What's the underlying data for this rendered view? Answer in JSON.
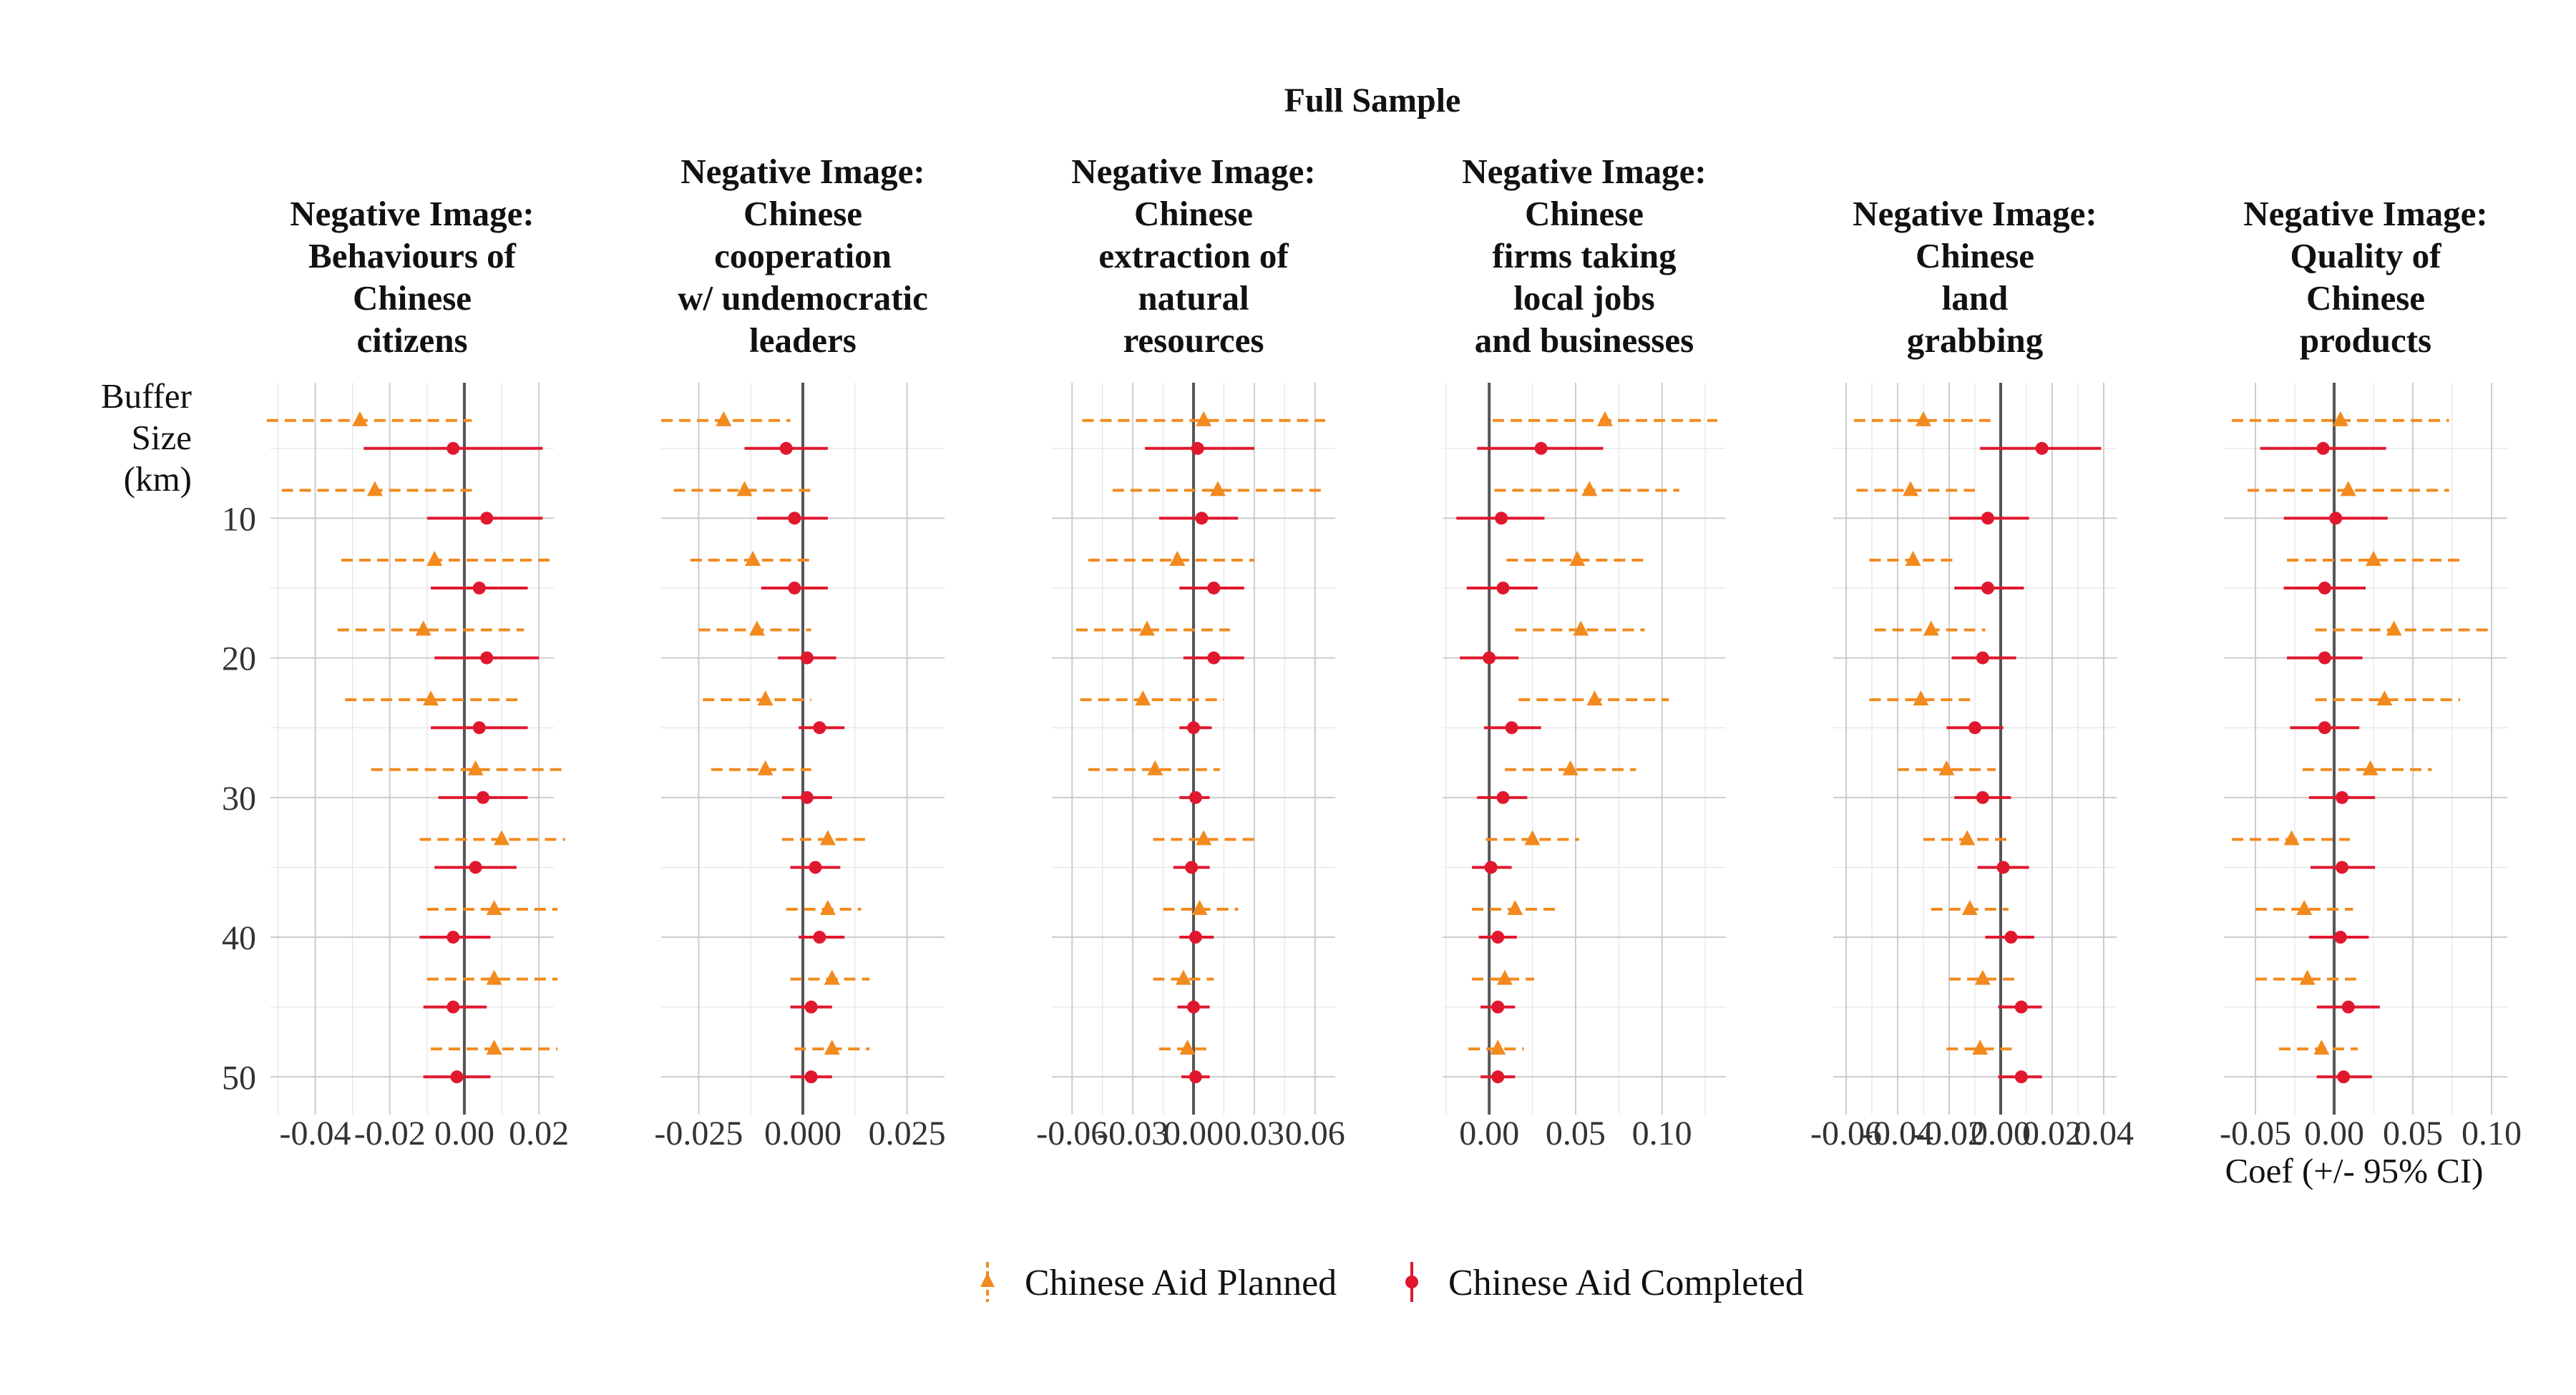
{
  "chart_data": {
    "type": "scatter",
    "title": "Full Sample",
    "y_axis_label": [
      "Buffer",
      "Size",
      "(km)"
    ],
    "x_axis_label": "Coef (+/- 95% CI)",
    "y_ticks": [
      10,
      20,
      30,
      40,
      50
    ],
    "buffers": [
      3,
      5,
      8,
      10,
      13,
      15,
      18,
      20,
      23,
      25,
      28,
      30,
      33,
      35,
      38,
      40,
      43,
      45,
      48,
      50
    ],
    "legend": {
      "position": "bottom",
      "items": [
        {
          "label": "Chinese Aid Planned",
          "color": "#F28A1E",
          "marker": "triangle",
          "line": "dashed"
        },
        {
          "label": "Chinese Aid Completed",
          "color": "#E0182D",
          "marker": "circle",
          "line": "solid"
        }
      ]
    },
    "grid": true,
    "panels": [
      {
        "title_lines": [
          "Negative Image:",
          "Behaviours of",
          "Chinese",
          "citizens"
        ],
        "xlim": [
          -0.052,
          0.024
        ],
        "x_ticks": [
          -0.04,
          -0.02,
          0.0,
          0.02
        ],
        "x_tick_labels": [
          "-0.04",
          "-0.02",
          "0.00",
          "0.02"
        ],
        "planned": {
          "coef": [
            -0.028,
            -0.024,
            -0.008,
            -0.011,
            -0.009,
            0.003,
            0.01,
            0.008,
            0.008,
            0.008
          ],
          "lo": [
            -0.053,
            -0.049,
            -0.033,
            -0.034,
            -0.032,
            -0.025,
            -0.012,
            -0.01,
            -0.01,
            -0.009
          ],
          "hi": [
            0.002,
            0.002,
            0.024,
            0.016,
            0.016,
            0.027,
            0.027,
            0.025,
            0.025,
            0.025
          ]
        },
        "completed": {
          "coef": [
            -0.003,
            0.006,
            0.004,
            0.006,
            0.004,
            0.005,
            0.003,
            -0.003,
            -0.003,
            -0.002
          ],
          "lo": [
            -0.027,
            -0.01,
            -0.009,
            -0.008,
            -0.009,
            -0.007,
            -0.008,
            -0.012,
            -0.011,
            -0.011
          ],
          "hi": [
            0.021,
            0.021,
            0.017,
            0.02,
            0.017,
            0.017,
            0.014,
            0.007,
            0.006,
            0.007
          ]
        }
      },
      {
        "title_lines": [
          "Negative Image:",
          "Chinese",
          "cooperation",
          "w/ undemocratic",
          "leaders"
        ],
        "xlim": [
          -0.034,
          0.034
        ],
        "x_ticks": [
          -0.025,
          0.0,
          0.025
        ],
        "x_tick_labels": [
          "-0.025",
          "0.000",
          "0.025"
        ],
        "planned": {
          "coef": [
            -0.019,
            -0.014,
            -0.012,
            -0.011,
            -0.009,
            -0.009,
            0.006,
            0.006,
            0.007,
            0.007
          ],
          "lo": [
            -0.034,
            -0.031,
            -0.027,
            -0.025,
            -0.024,
            -0.022,
            -0.005,
            -0.004,
            -0.003,
            -0.002
          ],
          "hi": [
            -0.003,
            0.002,
            0.002,
            0.002,
            0.002,
            0.002,
            0.015,
            0.014,
            0.016,
            0.016
          ]
        },
        "completed": {
          "coef": [
            -0.004,
            -0.002,
            -0.002,
            0.001,
            0.004,
            0.001,
            0.003,
            0.004,
            0.002,
            0.002
          ],
          "lo": [
            -0.014,
            -0.011,
            -0.01,
            -0.006,
            -0.001,
            -0.005,
            -0.003,
            -0.001,
            -0.003,
            -0.003
          ],
          "hi": [
            0.006,
            0.006,
            0.006,
            0.008,
            0.01,
            0.007,
            0.009,
            0.01,
            0.007,
            0.007
          ]
        }
      },
      {
        "title_lines": [
          "Negative Image:",
          "Chinese",
          "extraction of",
          "natural",
          "resources"
        ],
        "xlim": [
          -0.07,
          0.07
        ],
        "x_ticks": [
          -0.06,
          -0.03,
          0.0,
          0.03,
          0.06
        ],
        "x_tick_labels": [
          "-0.06",
          "-0.03",
          "0.00",
          "0.03",
          "0.06"
        ],
        "planned": {
          "coef": [
            0.005,
            0.012,
            -0.008,
            -0.023,
            -0.025,
            -0.019,
            0.005,
            0.003,
            -0.005,
            -0.003
          ],
          "lo": [
            -0.055,
            -0.04,
            -0.052,
            -0.058,
            -0.056,
            -0.052,
            -0.02,
            -0.015,
            -0.02,
            -0.017
          ],
          "hi": [
            0.065,
            0.063,
            0.03,
            0.018,
            0.015,
            0.013,
            0.03,
            0.022,
            0.01,
            0.009
          ]
        },
        "completed": {
          "coef": [
            0.002,
            0.004,
            0.01,
            0.01,
            0.0,
            0.001,
            -0.001,
            0.001,
            0.0,
            0.001
          ],
          "lo": [
            -0.024,
            -0.017,
            -0.007,
            -0.005,
            -0.007,
            -0.007,
            -0.01,
            -0.007,
            -0.008,
            -0.006
          ],
          "hi": [
            0.03,
            0.022,
            0.025,
            0.025,
            0.009,
            0.008,
            0.008,
            0.01,
            0.008,
            0.008
          ]
        }
      },
      {
        "title_lines": [
          "Negative Image:",
          "Chinese",
          "firms taking",
          "local jobs",
          "and businesses"
        ],
        "xlim": [
          -0.027,
          0.137
        ],
        "x_ticks": [
          0.0,
          0.05,
          0.1
        ],
        "x_tick_labels": [
          "0.00",
          "0.05",
          "0.10"
        ],
        "planned": {
          "coef": [
            0.067,
            0.058,
            0.051,
            0.053,
            0.061,
            0.047,
            0.025,
            0.015,
            0.009,
            0.005
          ],
          "lo": [
            0.002,
            0.003,
            0.01,
            0.015,
            0.017,
            0.009,
            -0.002,
            -0.01,
            -0.01,
            -0.012
          ],
          "hi": [
            0.132,
            0.11,
            0.092,
            0.09,
            0.104,
            0.085,
            0.052,
            0.038,
            0.026,
            0.02
          ],
          "hi_clipped": [
            true,
            false,
            false,
            false,
            false,
            false,
            false,
            false,
            false,
            false
          ]
        },
        "completed": {
          "coef": [
            0.03,
            0.007,
            0.008,
            0.0,
            0.013,
            0.008,
            0.001,
            0.005,
            0.005,
            0.005
          ],
          "lo": [
            -0.007,
            -0.019,
            -0.013,
            -0.017,
            -0.003,
            -0.007,
            -0.01,
            -0.006,
            -0.005,
            -0.005
          ],
          "hi": [
            0.066,
            0.032,
            0.028,
            0.017,
            0.03,
            0.022,
            0.013,
            0.016,
            0.015,
            0.015
          ]
        }
      },
      {
        "title_lines": [
          "Negative Image:",
          "Chinese",
          "land",
          "grabbing"
        ],
        "xlim": [
          -0.065,
          0.045
        ],
        "x_ticks": [
          -0.06,
          -0.04,
          -0.02,
          0.0,
          0.02,
          0.04
        ],
        "x_tick_labels": [
          "-0.06",
          "-0.04",
          "-0.02",
          "0.00",
          "0.02",
          "0.04"
        ],
        "planned": {
          "coef": [
            -0.03,
            -0.035,
            -0.034,
            -0.027,
            -0.031,
            -0.021,
            -0.013,
            -0.012,
            -0.007,
            -0.008
          ],
          "lo": [
            -0.057,
            -0.056,
            -0.051,
            -0.049,
            -0.051,
            -0.04,
            -0.03,
            -0.027,
            -0.02,
            -0.021
          ],
          "hi": [
            -0.003,
            -0.01,
            -0.017,
            -0.006,
            -0.01,
            -0.002,
            0.003,
            0.003,
            0.006,
            0.005
          ]
        },
        "completed": {
          "coef": [
            0.016,
            -0.005,
            -0.005,
            -0.007,
            -0.01,
            -0.007,
            0.001,
            0.004,
            0.008,
            0.008
          ],
          "lo": [
            -0.008,
            -0.02,
            -0.018,
            -0.019,
            -0.021,
            -0.018,
            -0.009,
            -0.006,
            -0.001,
            -0.001
          ],
          "hi": [
            0.039,
            0.011,
            0.009,
            0.006,
            0.001,
            0.004,
            0.011,
            0.013,
            0.016,
            0.016
          ]
        }
      },
      {
        "title_lines": [
          "Negative Image:",
          "Quality of",
          "Chinese",
          "products"
        ],
        "xlim": [
          -0.07,
          0.11
        ],
        "x_ticks": [
          -0.05,
          0.0,
          0.05,
          0.1
        ],
        "x_tick_labels": [
          "-0.05",
          "0.00",
          "0.05",
          "0.10"
        ],
        "planned": {
          "coef": [
            0.004,
            0.009,
            0.025,
            0.038,
            0.032,
            0.023,
            -0.027,
            -0.019,
            -0.017,
            -0.008
          ],
          "lo": [
            -0.065,
            -0.055,
            -0.03,
            -0.012,
            -0.012,
            -0.02,
            -0.065,
            -0.05,
            -0.05,
            -0.035
          ],
          "hi": [
            0.073,
            0.073,
            0.08,
            0.1,
            0.08,
            0.062,
            0.01,
            0.012,
            0.014,
            0.015
          ]
        },
        "completed": {
          "coef": [
            -0.007,
            0.001,
            -0.006,
            -0.006,
            -0.006,
            0.005,
            0.005,
            0.004,
            0.009,
            0.006
          ],
          "lo": [
            -0.047,
            -0.032,
            -0.032,
            -0.03,
            -0.028,
            -0.016,
            -0.015,
            -0.016,
            -0.011,
            -0.011
          ],
          "hi": [
            0.033,
            0.034,
            0.02,
            0.018,
            0.016,
            0.026,
            0.026,
            0.022,
            0.029,
            0.024
          ]
        }
      }
    ]
  }
}
